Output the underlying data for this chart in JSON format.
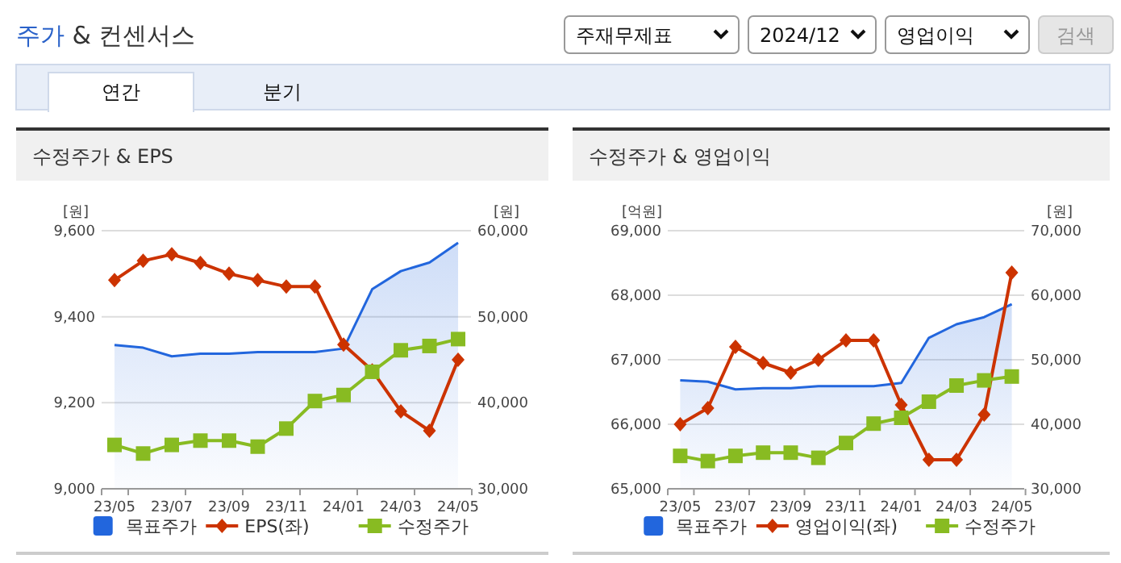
{
  "chart_data": [
    {
      "type": "other",
      "title": "주가 & 컨센서스",
      "annotations": [
        "주재무제표",
        "2024/12",
        "영업이익",
        "검색",
        "연간",
        "분기"
      ]
    },
    {
      "type": "line",
      "title": "수정주가 & EPS",
      "ylabel": "[원]",
      "y2label": "[원]",
      "categories": [
        "23/05",
        null,
        "23/07",
        null,
        "23/09",
        null,
        "23/11",
        null,
        "24/01",
        null,
        "24/03",
        null,
        "24/05"
      ],
      "ylim": [
        9000,
        9600
      ],
      "yticks": [
        {
          "value": 9000,
          "label": "9,000"
        },
        {
          "value": 9200,
          "label": "9,200"
        },
        {
          "value": 9400,
          "label": "9,400"
        },
        {
          "value": 9600,
          "label": "9,600"
        }
      ],
      "y2lim": [
        30000,
        60000
      ],
      "y2ticks": [
        {
          "value": 30000,
          "label": "30,000"
        },
        {
          "value": 40000,
          "label": "40,000"
        },
        {
          "value": 50000,
          "label": "50,000"
        },
        {
          "value": 60000,
          "label": "60,000"
        }
      ],
      "grid": "y",
      "legend": "bottom",
      "series": [
        {
          "name": "목표주가",
          "type": "area",
          "axis": "y2",
          "color": "#2266dd",
          "values": [
            46700,
            46400,
            45400,
            45700,
            45700,
            45900,
            45900,
            45900,
            46300,
            53200,
            55300,
            56300,
            58600
          ]
        },
        {
          "name": "EPS(좌)",
          "type": "line",
          "color": "#cc3300",
          "marker": "diamond",
          "values": [
            9485,
            9530,
            9545,
            9525,
            9500,
            9485,
            9470,
            9470,
            9335,
            9275,
            9180,
            9135,
            9300
          ]
        },
        {
          "name": "수정주가",
          "type": "line",
          "axis": "y2",
          "color": "#88bb22",
          "marker": "square",
          "values": [
            35100,
            34100,
            35100,
            35600,
            35600,
            34900,
            37000,
            40200,
            40900,
            43600,
            46100,
            46600,
            47400
          ]
        }
      ]
    },
    {
      "type": "line",
      "title": "수정주가 & 영업이익",
      "ylabel": "[억원]",
      "y2label": "[원]",
      "categories": [
        "23/05",
        null,
        "23/07",
        null,
        "23/09",
        null,
        "23/11",
        null,
        "24/01",
        null,
        "24/03",
        null,
        "24/05"
      ],
      "ylim": [
        65000,
        69000
      ],
      "yticks": [
        {
          "value": 65000,
          "label": "65,000"
        },
        {
          "value": 66000,
          "label": "66,000"
        },
        {
          "value": 67000,
          "label": "67,000"
        },
        {
          "value": 68000,
          "label": "68,000"
        },
        {
          "value": 69000,
          "label": "69,000"
        }
      ],
      "y2lim": [
        30000,
        70000
      ],
      "y2ticks": [
        {
          "value": 30000,
          "label": "30,000"
        },
        {
          "value": 40000,
          "label": "40,000"
        },
        {
          "value": 50000,
          "label": "50,000"
        },
        {
          "value": 60000,
          "label": "60,000"
        },
        {
          "value": 70000,
          "label": "70,000"
        }
      ],
      "grid": "y",
      "legend": "bottom",
      "series": [
        {
          "name": "목표주가",
          "type": "area",
          "axis": "y2",
          "color": "#2266dd",
          "values": [
            46800,
            46600,
            45400,
            45600,
            45600,
            45900,
            45900,
            45900,
            46400,
            53400,
            55500,
            56600,
            58600
          ]
        },
        {
          "name": "영업이익(좌)",
          "type": "line",
          "color": "#cc3300",
          "marker": "diamond",
          "values": [
            66000,
            66250,
            67200,
            66950,
            66800,
            67000,
            67300,
            67300,
            66300,
            65450,
            65450,
            66150,
            68350
          ]
        },
        {
          "name": "수정주가",
          "type": "line",
          "axis": "y2",
          "color": "#88bb22",
          "marker": "square",
          "values": [
            35100,
            34300,
            35100,
            35600,
            35600,
            34800,
            37100,
            40100,
            41000,
            43500,
            46000,
            46800,
            47400
          ]
        }
      ]
    }
  ]
}
